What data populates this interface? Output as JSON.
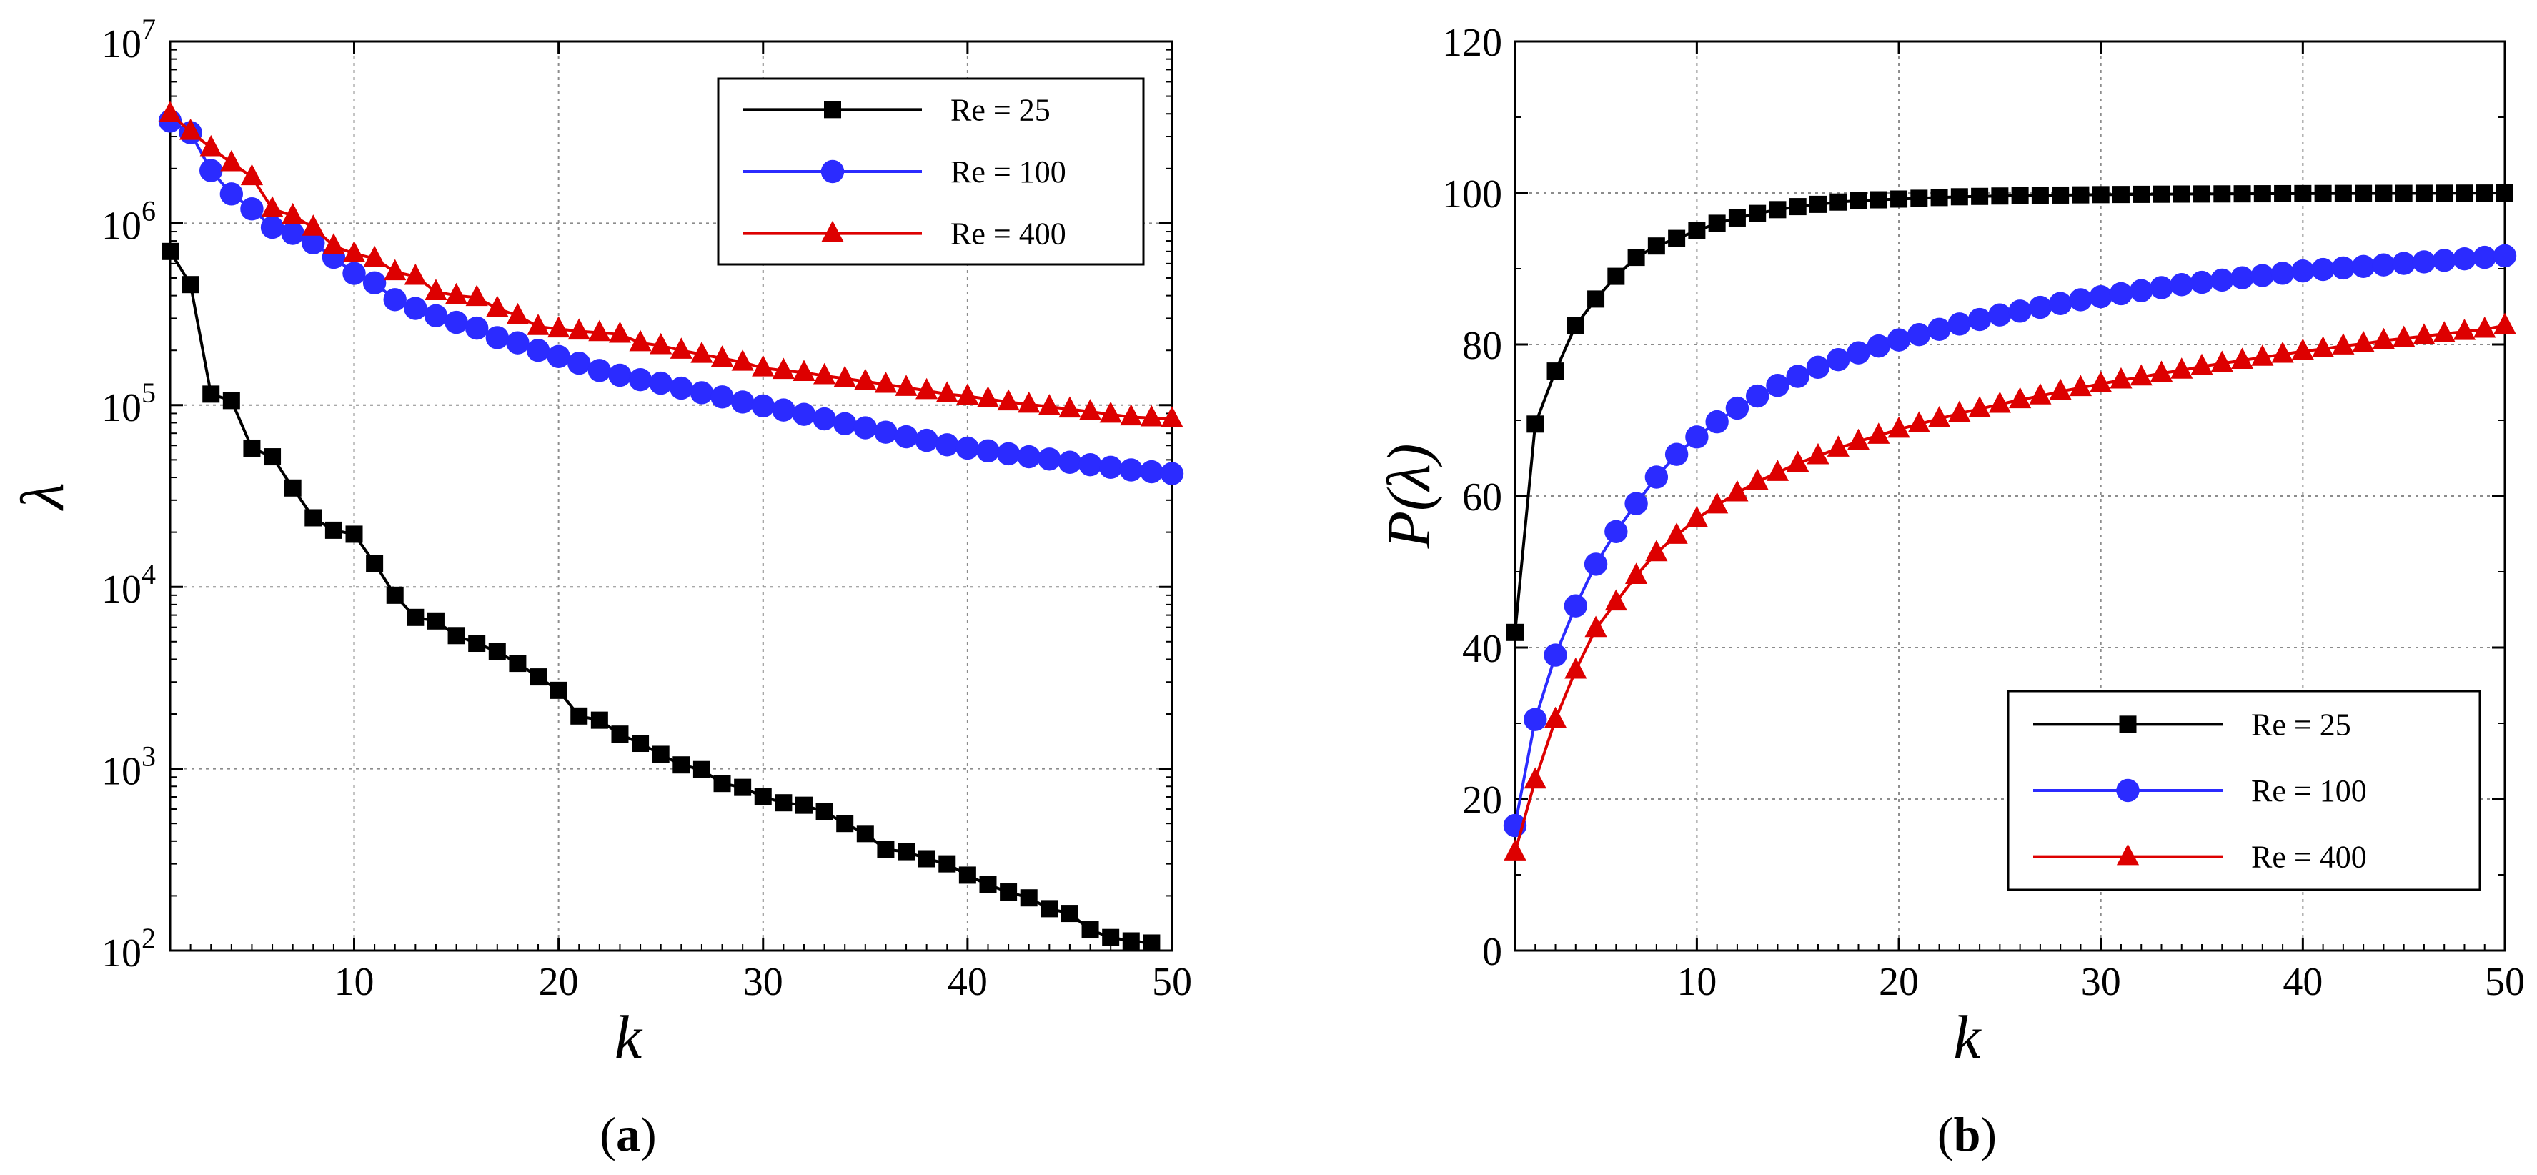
{
  "chart_data": [
    {
      "type": "line",
      "panel_label": "(a)",
      "panel_letter": "a",
      "xlabel": "k",
      "ylabel": "λ",
      "yscale": "log",
      "xlim": [
        1,
        50
      ],
      "ylim": [
        100,
        10000000
      ],
      "grid": true,
      "legend_position": "top-right",
      "x_ticks": [
        10,
        20,
        30,
        40,
        50
      ],
      "x_tick_labels": [
        "10",
        "20",
        "30",
        "40",
        "50"
      ],
      "y_ticks": [
        100,
        1000,
        10000,
        100000,
        1000000,
        10000000
      ],
      "y_tick_bases": [
        "10",
        "10",
        "10",
        "10",
        "10",
        "10"
      ],
      "y_tick_exponents": [
        "2",
        "3",
        "4",
        "5",
        "6",
        "7"
      ],
      "x": [
        1,
        2,
        3,
        4,
        5,
        6,
        7,
        8,
        9,
        10,
        11,
        12,
        13,
        14,
        15,
        16,
        17,
        18,
        19,
        20,
        21,
        22,
        23,
        24,
        25,
        26,
        27,
        28,
        29,
        30,
        31,
        32,
        33,
        34,
        35,
        36,
        37,
        38,
        39,
        40,
        41,
        42,
        43,
        44,
        45,
        46,
        47,
        48,
        49,
        50
      ],
      "series": [
        {
          "name": "Re = 25",
          "color": "#000000",
          "marker": "square",
          "values": [
            700000,
            460000,
            115000,
            106000,
            58000,
            52000,
            35000,
            24000,
            20500,
            19500,
            13500,
            9000,
            6800,
            6500,
            5400,
            4900,
            4400,
            3800,
            3200,
            2700,
            1950,
            1850,
            1550,
            1380,
            1200,
            1050,
            990,
            830,
            790,
            700,
            650,
            630,
            580,
            500,
            440,
            360,
            350,
            320,
            300,
            260,
            230,
            210,
            195,
            170,
            160,
            130,
            118,
            113,
            110,
            null
          ]
        },
        {
          "name": "Re = 100",
          "color": "#2b2bff",
          "marker": "circle",
          "values": [
            3650000,
            3150000,
            1950000,
            1450000,
            1200000,
            950000,
            880000,
            780000,
            650000,
            530000,
            470000,
            380000,
            340000,
            310000,
            285000,
            265000,
            235000,
            220000,
            200000,
            185000,
            170000,
            155000,
            146000,
            138000,
            132000,
            124000,
            117000,
            111000,
            104000,
            99000,
            94000,
            89000,
            84000,
            79000,
            75000,
            71000,
            67000,
            64000,
            60500,
            58000,
            56000,
            54000,
            52000,
            50500,
            48500,
            47000,
            45500,
            44000,
            43000,
            42000
          ]
        },
        {
          "name": "Re = 400",
          "color": "#dd0000",
          "marker": "triangle",
          "values": [
            4000000,
            3200000,
            2600000,
            2150000,
            1800000,
            1200000,
            1100000,
            950000,
            750000,
            680000,
            640000,
            540000,
            510000,
            420000,
            400000,
            390000,
            340000,
            310000,
            270000,
            262000,
            255000,
            250000,
            245000,
            220000,
            212000,
            200000,
            190000,
            181000,
            172000,
            160000,
            155000,
            151000,
            145000,
            140000,
            135000,
            130000,
            125000,
            120000,
            115000,
            112000,
            108000,
            104000,
            101000,
            98000,
            95000,
            92000,
            89000,
            86000,
            85000,
            84000
          ]
        }
      ]
    },
    {
      "type": "line",
      "panel_label": "(b)",
      "panel_letter": "b",
      "xlabel": "k",
      "ylabel": "P(λ)",
      "yscale": "linear",
      "xlim": [
        1,
        50
      ],
      "ylim": [
        0,
        120
      ],
      "grid": true,
      "legend_position": "bottom-right",
      "x_ticks": [
        10,
        20,
        30,
        40,
        50
      ],
      "x_tick_labels": [
        "10",
        "20",
        "30",
        "40",
        "50"
      ],
      "y_ticks": [
        0,
        20,
        40,
        60,
        80,
        100,
        120
      ],
      "y_tick_labels": [
        "0",
        "20",
        "40",
        "60",
        "80",
        "100",
        "120"
      ],
      "x": [
        1,
        2,
        3,
        4,
        5,
        6,
        7,
        8,
        9,
        10,
        11,
        12,
        13,
        14,
        15,
        16,
        17,
        18,
        19,
        20,
        21,
        22,
        23,
        24,
        25,
        26,
        27,
        28,
        29,
        30,
        31,
        32,
        33,
        34,
        35,
        36,
        37,
        38,
        39,
        40,
        41,
        42,
        43,
        44,
        45,
        46,
        47,
        48,
        49,
        50
      ],
      "series": [
        {
          "name": "Re = 25",
          "color": "#000000",
          "marker": "square",
          "values": [
            42,
            69.5,
            76.5,
            82.5,
            86,
            89,
            91.5,
            93,
            94,
            95,
            96,
            96.7,
            97.3,
            97.8,
            98.2,
            98.5,
            98.8,
            99,
            99.1,
            99.2,
            99.3,
            99.4,
            99.5,
            99.55,
            99.6,
            99.65,
            99.7,
            99.72,
            99.75,
            99.78,
            99.8,
            99.82,
            99.84,
            99.86,
            99.87,
            99.88,
            99.89,
            99.9,
            99.91,
            99.92,
            99.93,
            99.94,
            99.94,
            99.95,
            99.95,
            99.96,
            99.97,
            99.98,
            99.99,
            100
          ]
        },
        {
          "name": "Re = 100",
          "color": "#2b2bff",
          "marker": "circle",
          "values": [
            16.5,
            30.5,
            39,
            45.5,
            51,
            55.3,
            59,
            62.5,
            65.5,
            67.8,
            69.8,
            71.6,
            73.2,
            74.6,
            75.8,
            77,
            78,
            78.9,
            79.8,
            80.6,
            81.3,
            82,
            82.7,
            83.3,
            83.9,
            84.4,
            84.9,
            85.4,
            85.9,
            86.3,
            86.7,
            87.1,
            87.5,
            87.9,
            88.2,
            88.5,
            88.8,
            89.1,
            89.4,
            89.7,
            89.9,
            90.1,
            90.3,
            90.5,
            90.7,
            90.9,
            91.1,
            91.3,
            91.5,
            91.7
          ]
        },
        {
          "name": "Re = 400",
          "color": "#dd0000",
          "marker": "triangle",
          "values": [
            13,
            22.5,
            30.5,
            37,
            42.5,
            46,
            49.5,
            52.5,
            54.8,
            57,
            58.8,
            60.4,
            61.9,
            63.1,
            64.3,
            65.3,
            66.3,
            67.2,
            68,
            68.8,
            69.5,
            70.2,
            70.9,
            71.5,
            72.1,
            72.7,
            73.2,
            73.8,
            74.3,
            74.8,
            75.3,
            75.7,
            76.2,
            76.6,
            77.1,
            77.5,
            77.9,
            78.3,
            78.7,
            79.1,
            79.4,
            79.8,
            80.1,
            80.5,
            80.8,
            81.1,
            81.4,
            81.7,
            82,
            82.5
          ]
        }
      ]
    }
  ]
}
